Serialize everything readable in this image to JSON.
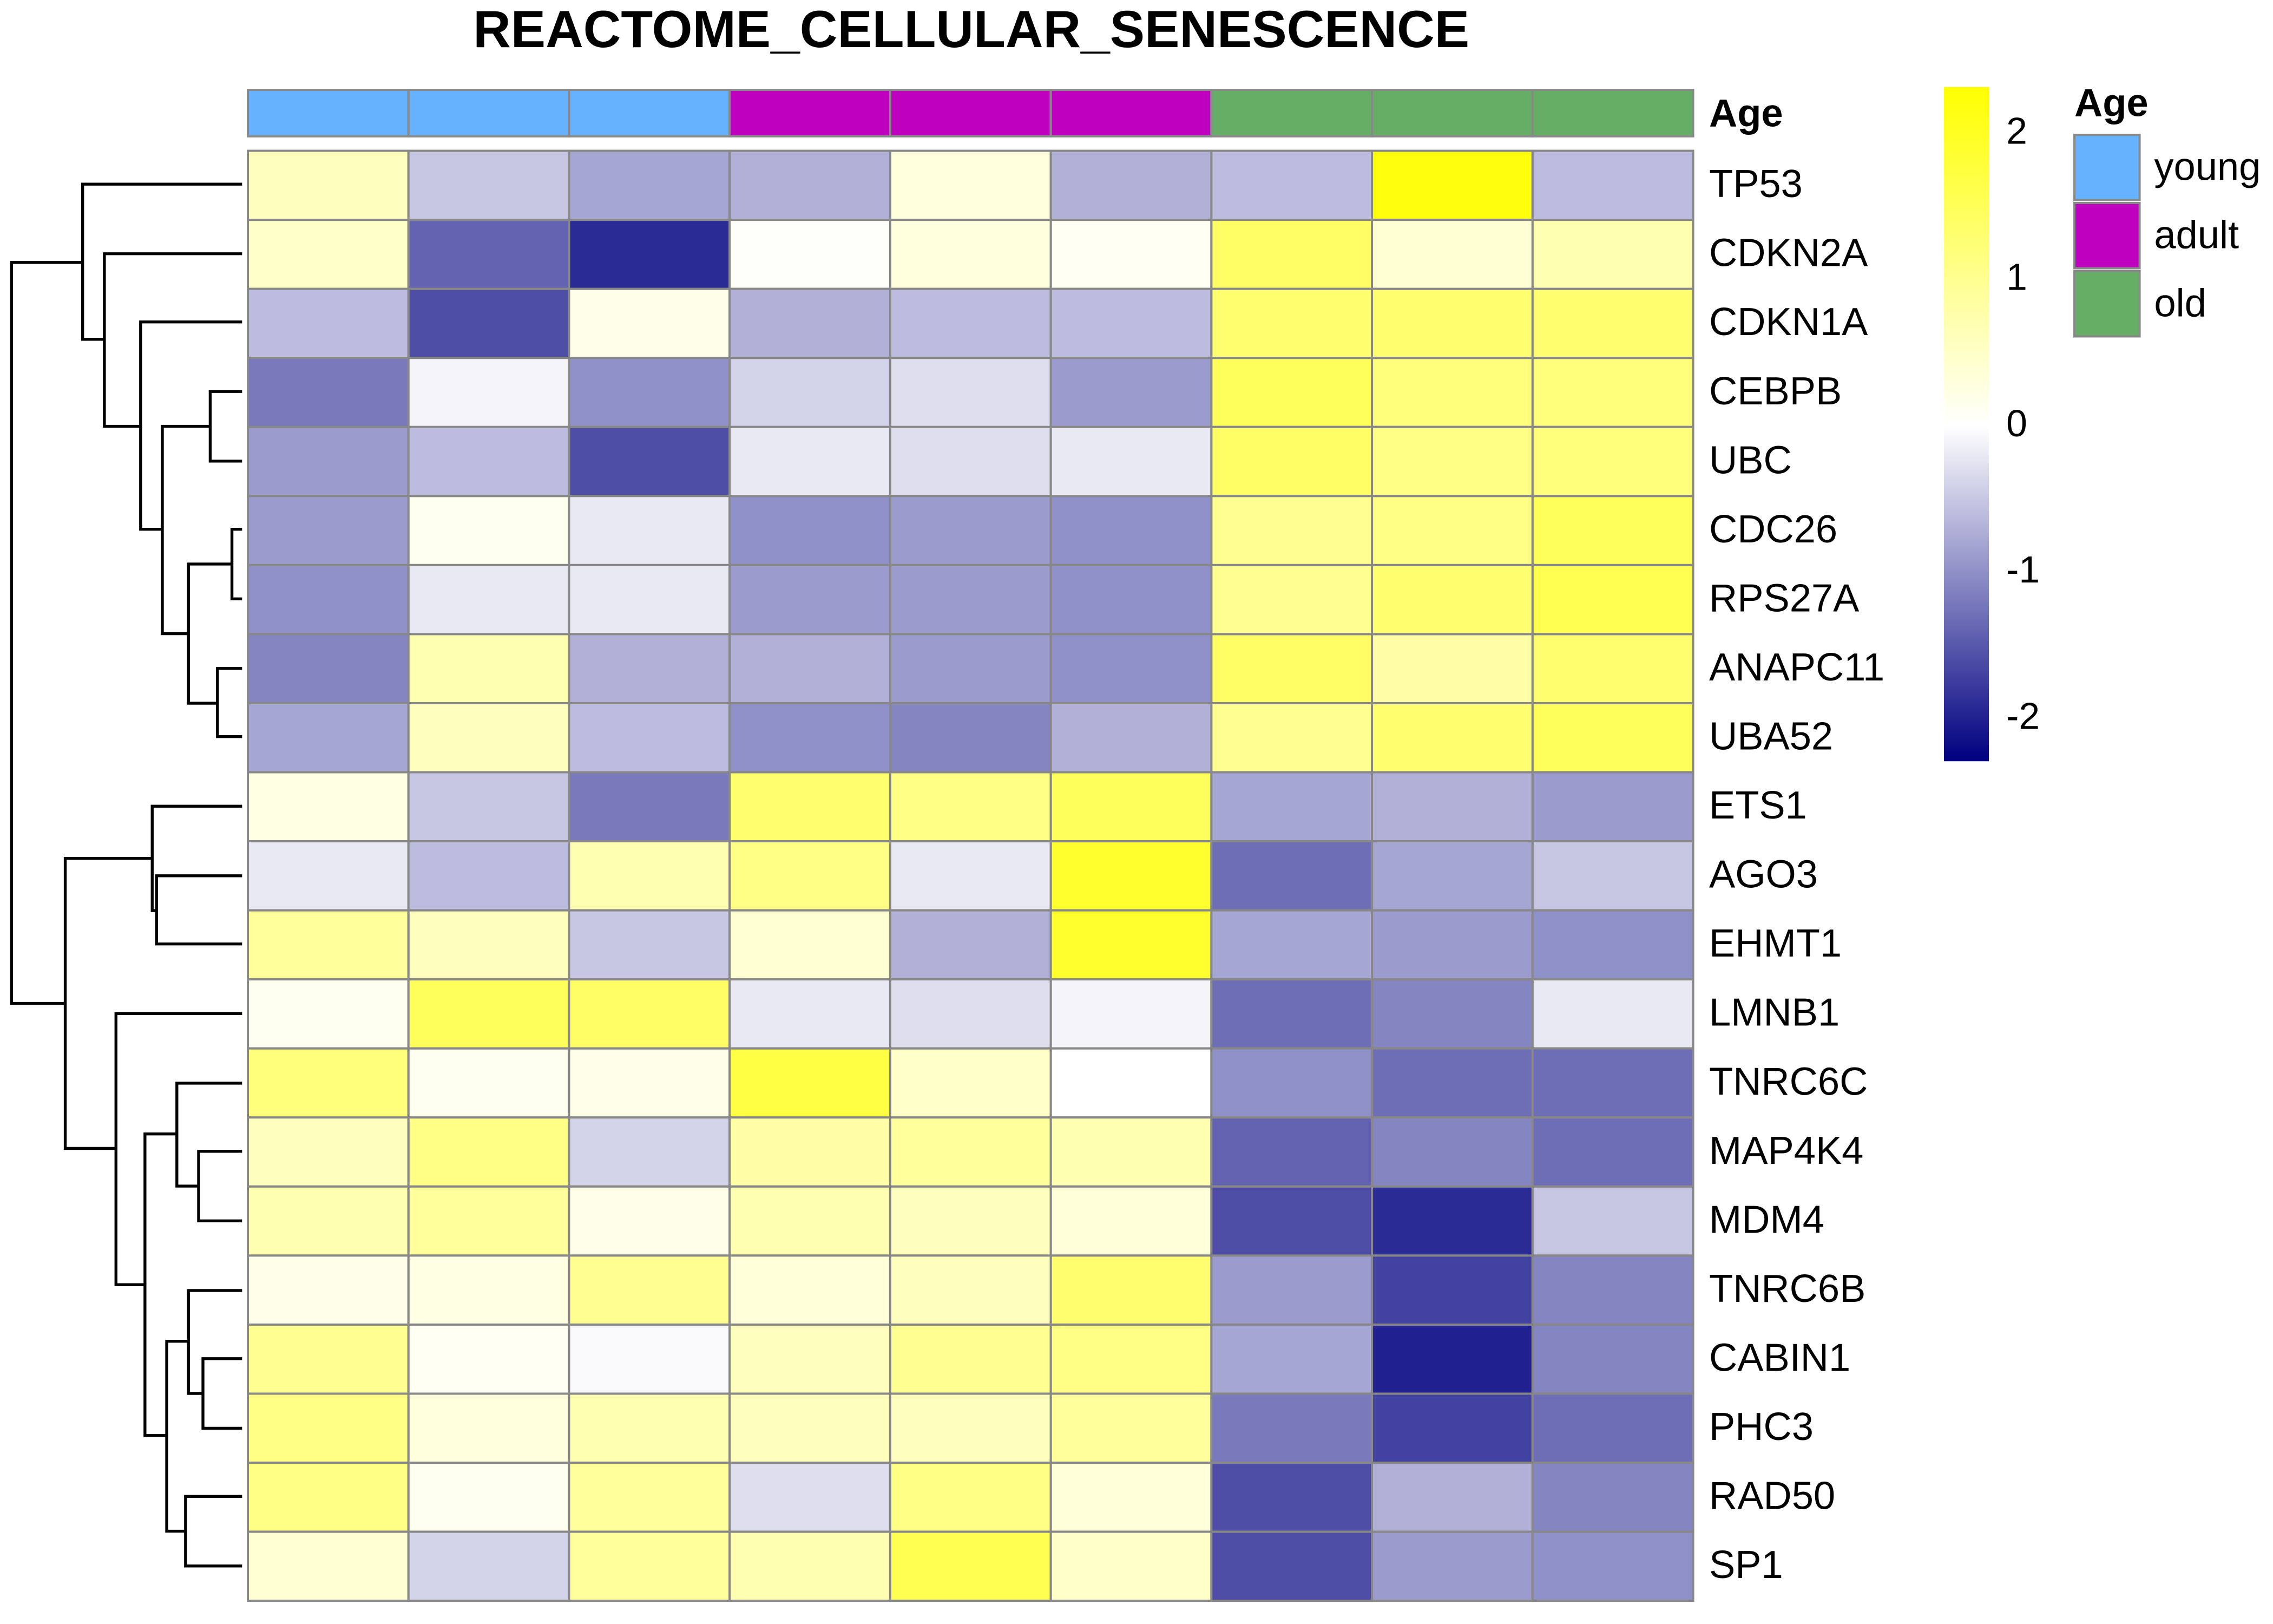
{
  "chart_data": {
    "type": "heatmap",
    "title": "REACTOME_CELLULAR_SENESCENCE",
    "rows": [
      "TP53",
      "CDKN2A",
      "CDKN1A",
      "CEBPB",
      "UBC",
      "CDC26",
      "RPS27A",
      "ANAPC11",
      "UBA52",
      "ETS1",
      "AGO3",
      "EHMT1",
      "LMNB1",
      "TNRC6C",
      "MAP4K4",
      "MDM4",
      "TNRC6B",
      "CABIN1",
      "PHC3",
      "RAD50",
      "SP1"
    ],
    "values": [
      [
        0.6,
        -0.5,
        -0.8,
        -0.7,
        0.3,
        -0.7,
        -0.6,
        2.2,
        -0.6
      ],
      [
        0.5,
        -1.4,
        -1.9,
        0.05,
        0.3,
        0.1,
        1.4,
        0.4,
        0.7
      ],
      [
        -0.6,
        -1.6,
        0.2,
        -0.7,
        -0.6,
        -0.6,
        1.3,
        1.3,
        1.3
      ],
      [
        -1.2,
        -0.1,
        -1.0,
        -0.4,
        -0.3,
        -0.9,
        1.5,
        1.2,
        1.2
      ],
      [
        -0.9,
        -0.6,
        -1.6,
        -0.2,
        -0.3,
        -0.2,
        1.4,
        1.1,
        1.2
      ],
      [
        -0.9,
        0.15,
        -0.2,
        -1.0,
        -0.9,
        -1.0,
        1.0,
        1.1,
        1.5
      ],
      [
        -1.0,
        -0.2,
        -0.2,
        -0.9,
        -0.9,
        -1.0,
        1.0,
        1.3,
        1.6
      ],
      [
        -1.1,
        0.7,
        -0.7,
        -0.7,
        -0.9,
        -1.0,
        1.4,
        0.8,
        1.3
      ],
      [
        -0.8,
        0.6,
        -0.6,
        -1.0,
        -1.1,
        -0.7,
        1.0,
        1.3,
        1.5
      ],
      [
        0.25,
        -0.5,
        -1.2,
        1.3,
        1.1,
        1.5,
        -0.8,
        -0.7,
        -0.9
      ],
      [
        -0.2,
        -0.6,
        0.7,
        1.1,
        -0.2,
        1.9,
        -1.3,
        -0.8,
        -0.5
      ],
      [
        0.9,
        0.6,
        -0.5,
        0.4,
        -0.7,
        1.9,
        -0.8,
        -0.9,
        -1.0
      ],
      [
        0.15,
        1.5,
        1.4,
        -0.2,
        -0.3,
        -0.1,
        -1.3,
        -1.1,
        -0.2
      ],
      [
        1.2,
        0.15,
        0.2,
        1.7,
        0.5,
        0.0,
        -1.0,
        -1.3,
        -1.3
      ],
      [
        0.6,
        1.1,
        -0.4,
        0.8,
        0.9,
        0.7,
        -1.4,
        -1.1,
        -1.3
      ],
      [
        0.7,
        0.9,
        0.2,
        0.7,
        0.6,
        0.35,
        -1.6,
        -1.9,
        -0.5
      ],
      [
        0.2,
        0.25,
        1.0,
        0.35,
        0.6,
        1.3,
        -0.9,
        -1.7,
        -1.1
      ],
      [
        1.0,
        0.1,
        -0.05,
        0.6,
        1.0,
        1.1,
        -0.8,
        -2.0,
        -1.1
      ],
      [
        1.1,
        0.3,
        0.7,
        0.6,
        0.6,
        0.9,
        -1.2,
        -1.7,
        -1.3
      ],
      [
        1.1,
        0.15,
        0.9,
        -0.3,
        1.1,
        0.35,
        -1.6,
        -0.7,
        -1.1
      ],
      [
        0.4,
        -0.4,
        0.9,
        0.7,
        1.6,
        0.5,
        -1.6,
        -0.9,
        -1.0
      ]
    ],
    "colorscale": [
      "#000080",
      "#FFFFFF",
      "#FFFF00"
    ],
    "clim": [
      -2.29,
      2.32
    ],
    "cticks": [
      -2,
      -1,
      0,
      1,
      2
    ],
    "annotation": {
      "title": "Age",
      "values": [
        "young",
        "young",
        "young",
        "adult",
        "adult",
        "adult",
        "old",
        "old",
        "old"
      ],
      "levels": [
        "young",
        "adult",
        "old"
      ],
      "colors": [
        "#66B2FF",
        "#BF00BF",
        "#66AE66"
      ]
    }
  }
}
